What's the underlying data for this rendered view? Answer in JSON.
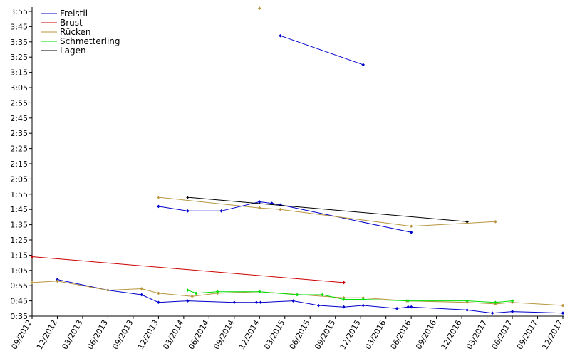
{
  "chart_data": {
    "type": "line",
    "title": "",
    "xlabel": "",
    "ylabel": "",
    "grid": false,
    "legend_position": "top-left",
    "y_unit": "m:ss",
    "ylim": [
      "0:35",
      "3:55"
    ],
    "y_ticks": [
      "0:35",
      "0:45",
      "0:55",
      "1:05",
      "1:15",
      "1:25",
      "1:35",
      "1:45",
      "1:55",
      "2:05",
      "2:15",
      "2:25",
      "2:35",
      "2:45",
      "2:55",
      "3:05",
      "3:15",
      "3:25",
      "3:35",
      "3:45",
      "3:55"
    ],
    "xlim": [
      "2012-09-01",
      "2017-12-01"
    ],
    "x_ticks": [
      "09/2012",
      "12/2012",
      "03/2013",
      "06/2013",
      "09/2013",
      "12/2013",
      "03/2014",
      "06/2014",
      "09/2014",
      "12/2014",
      "03/2015",
      "06/2015",
      "09/2015",
      "12/2015",
      "03/2016",
      "06/2016",
      "09/2016",
      "12/2016",
      "03/2017",
      "06/2017",
      "09/2017",
      "12/2017"
    ],
    "series": [
      {
        "name": "Freistil",
        "color": "#0000cc",
        "segments": [
          [
            [
              "2014-12-01",
              "1:50"
            ],
            [
              "2015-01-15",
              "1:49"
            ],
            [
              "2015-02-15",
              "1:48"
            ],
            [
              "2016-06-01",
              "1:30"
            ]
          ],
          [
            [
              "2015-02-15",
              "3:39"
            ],
            [
              "2015-12-10",
              "3:20"
            ]
          ],
          [
            [
              "2012-12-01",
              "0:59"
            ],
            [
              "2013-06-01",
              "0:52"
            ],
            [
              "2013-10-01",
              "0:49"
            ],
            [
              "2013-12-01",
              "0:44"
            ],
            [
              "2014-03-15",
              "0:45"
            ],
            [
              "2014-09-01",
              "0:44"
            ],
            [
              "2014-11-20",
              "0:44"
            ],
            [
              "2014-12-05",
              "0:44"
            ],
            [
              "2015-04-01",
              "0:45"
            ],
            [
              "2015-07-01",
              "0:42"
            ],
            [
              "2015-10-01",
              "0:41"
            ],
            [
              "2015-12-10",
              "0:42"
            ],
            [
              "2016-04-10",
              "0:40"
            ],
            [
              "2016-05-20",
              "0:41"
            ],
            [
              "2016-06-01",
              "0:41"
            ],
            [
              "2016-12-20",
              "0:39"
            ],
            [
              "2017-03-20",
              "0:37"
            ],
            [
              "2017-06-01",
              "0:38"
            ],
            [
              "2017-12-01",
              "0:37"
            ]
          ],
          [
            [
              "2013-12-01",
              "1:47"
            ],
            [
              "2014-03-15",
              "1:44"
            ],
            [
              "2014-07-15",
              "1:44"
            ],
            [
              "2014-12-01",
              "1:50"
            ]
          ]
        ]
      },
      {
        "name": "Brust",
        "color": "#cc0000",
        "segments": [
          [
            [
              "2012-09-01",
              "1:14"
            ],
            [
              "2015-10-01",
              "0:57"
            ]
          ]
        ]
      },
      {
        "name": "Rücken",
        "color": "#b8963c",
        "segments": [
          [
            [
              "2014-12-01",
              "3:57"
            ]
          ],
          [
            [
              "2013-12-01",
              "1:53"
            ],
            [
              "2014-12-01",
              "1:46"
            ],
            [
              "2015-02-15",
              "1:45"
            ],
            [
              "2016-06-01",
              "1:34"
            ],
            [
              "2017-04-01",
              "1:37"
            ]
          ],
          [
            [
              "2012-09-01",
              "0:57"
            ],
            [
              "2012-12-01",
              "0:58"
            ],
            [
              "2013-06-01",
              "0:52"
            ],
            [
              "2013-10-01",
              "0:53"
            ],
            [
              "2013-12-01",
              "0:50"
            ],
            [
              "2014-04-01",
              "0:48"
            ],
            [
              "2014-07-01",
              "0:50"
            ],
            [
              "2014-12-01",
              "0:51"
            ],
            [
              "2015-10-01",
              "0:47"
            ],
            [
              "2015-12-10",
              "0:47"
            ],
            [
              "2016-05-15",
              "0:45"
            ],
            [
              "2016-12-20",
              "0:44"
            ],
            [
              "2017-04-01",
              "0:43"
            ],
            [
              "2017-06-01",
              "0:44"
            ],
            [
              "2017-12-01",
              "0:42"
            ]
          ]
        ]
      },
      {
        "name": "Schmetterling",
        "color": "#00dd00",
        "segments": [
          [
            [
              "2014-03-15",
              "0:52"
            ],
            [
              "2014-04-15",
              "0:50"
            ],
            [
              "2014-07-01",
              "0:51"
            ],
            [
              "2014-12-01",
              "0:51"
            ],
            [
              "2015-04-15",
              "0:49"
            ],
            [
              "2015-07-15",
              "0:49"
            ],
            [
              "2015-10-01",
              "0:46"
            ],
            [
              "2015-12-10",
              "0:46"
            ],
            [
              "2016-05-20",
              "0:45"
            ],
            [
              "2016-12-20",
              "0:45"
            ],
            [
              "2017-04-01",
              "0:44"
            ],
            [
              "2017-06-01",
              "0:45"
            ]
          ]
        ]
      },
      {
        "name": "Lagen",
        "color": "#000000",
        "segments": [
          [
            [
              "2014-03-15",
              "1:53"
            ],
            [
              "2016-12-20",
              "1:37"
            ]
          ]
        ]
      }
    ]
  }
}
